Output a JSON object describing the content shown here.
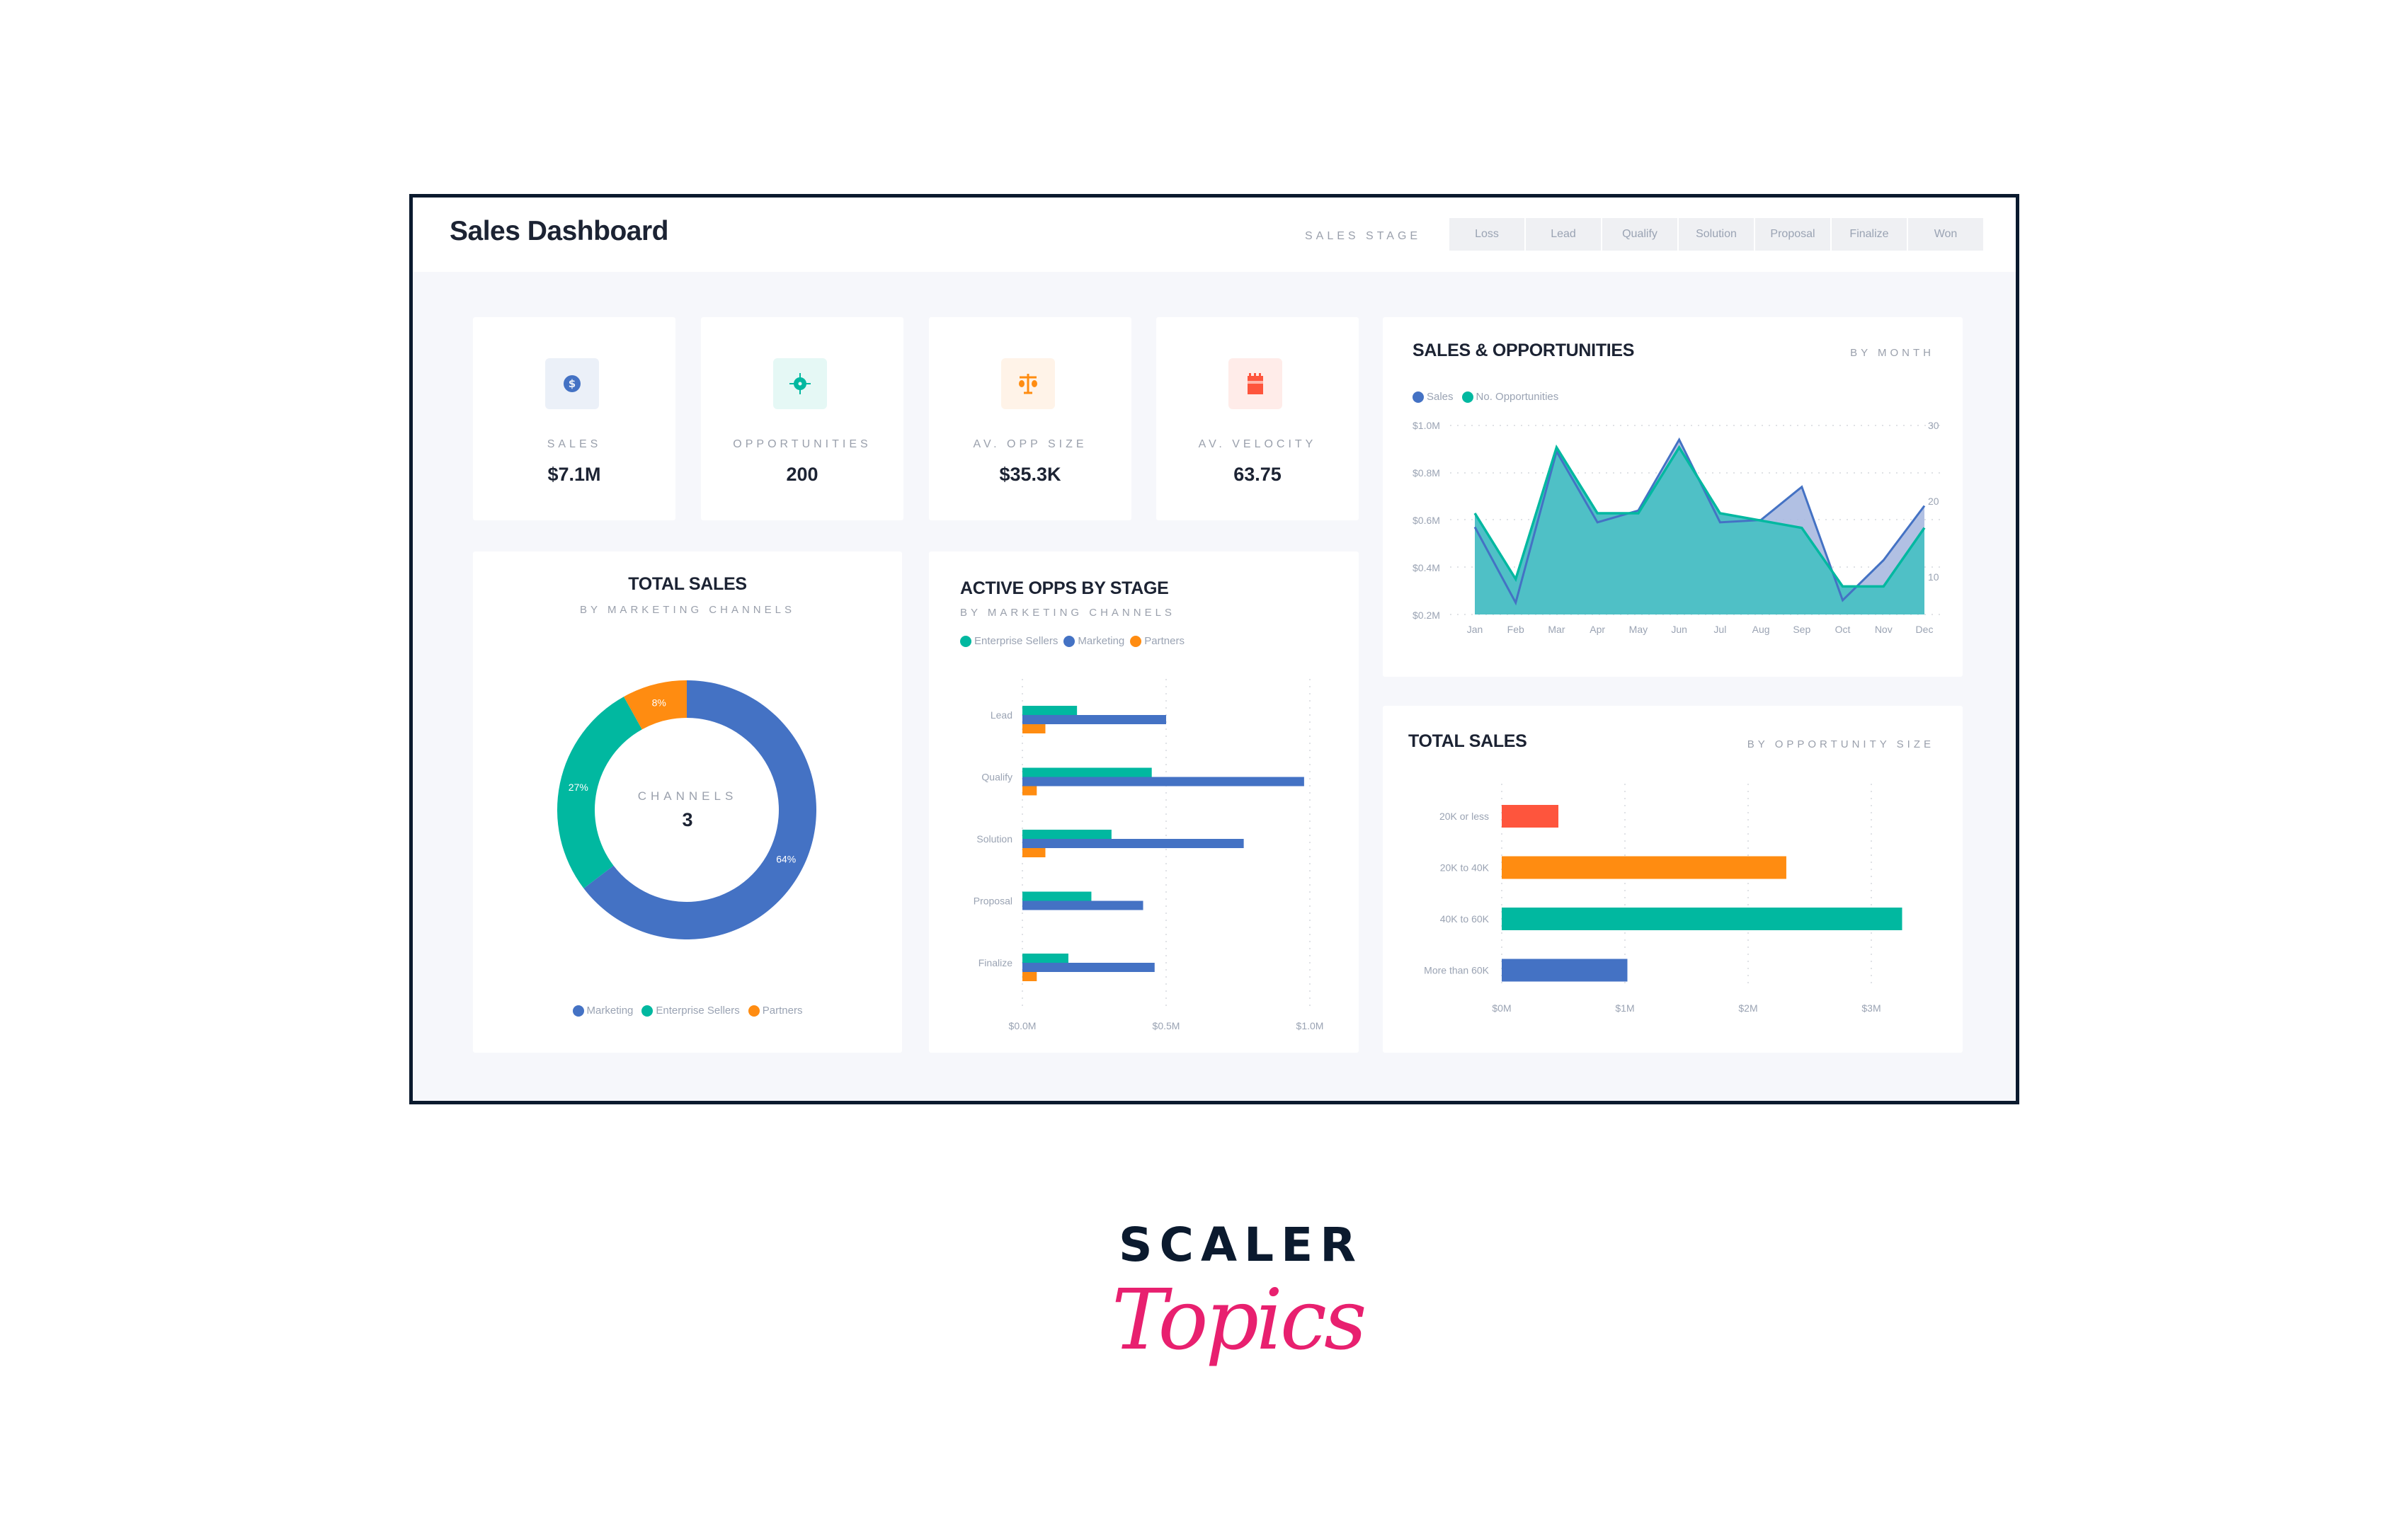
{
  "header": {
    "title": "Sales Dashboard",
    "stage_label": "SALES STAGE",
    "stages": [
      "Loss",
      "Lead",
      "Qualify",
      "Solution",
      "Proposal",
      "Finalize",
      "Won"
    ]
  },
  "kpis": [
    {
      "label": "SALES",
      "value": "$7.1M",
      "icon": "dollar-icon",
      "color": "#4472c4",
      "bg": "#ebf0f8"
    },
    {
      "label": "OPPORTUNITIES",
      "value": "200",
      "icon": "target-icon",
      "color": "#01b8a0",
      "bg": "#e5f8f5"
    },
    {
      "label": "AV. OPP SIZE",
      "value": "$35.3K",
      "icon": "scale-icon",
      "color": "#ff8c11",
      "bg": "#fff3e8"
    },
    {
      "label": "AV. VELOCITY",
      "value": "63.75",
      "icon": "calendar-icon",
      "color": "#fe553d",
      "bg": "#ffece9"
    }
  ],
  "sales_opps": {
    "title": "SALES & OPPORTUNITIES",
    "subtitle": "BY MONTH",
    "legend": [
      "Sales",
      "No. Opportunities"
    ],
    "y_left": [
      "$1.0M",
      "$0.8M",
      "$0.6M",
      "$0.4M",
      "$0.2M"
    ],
    "y_right": [
      "30",
      "20",
      "10"
    ],
    "months": [
      "Jan",
      "Feb",
      "Mar",
      "Apr",
      "May",
      "Jun",
      "Jul",
      "Aug",
      "Sep",
      "Oct",
      "Nov",
      "Dec"
    ]
  },
  "total_sales_channels": {
    "title": "TOTAL SALES",
    "subtitle": "BY MARKETING CHANNELS",
    "center_label": "CHANNELS",
    "center_value": "3",
    "slices": [
      {
        "name": "Marketing",
        "pct": "64%",
        "color": "#4472c4"
      },
      {
        "name": "Enterprise Sellers",
        "pct": "27%",
        "color": "#01b8a0"
      },
      {
        "name": "Partners",
        "pct": "8%",
        "color": "#ff8c11"
      }
    ]
  },
  "active_opps": {
    "title": "ACTIVE OPPS BY STAGE",
    "subtitle": "BY MARKETING CHANNELS",
    "legend": [
      "Enterprise Sellers",
      "Marketing",
      "Partners"
    ],
    "stages": [
      "Lead",
      "Qualify",
      "Solution",
      "Proposal",
      "Finalize"
    ],
    "x_ticks": [
      "$0.0M",
      "$0.5M",
      "$1.0M"
    ]
  },
  "total_sales_size": {
    "title": "TOTAL SALES",
    "subtitle": "BY OPPORTUNITY SIZE",
    "categories": [
      "20K or less",
      "20K to 40K",
      "40K to 60K",
      "More than 60K"
    ],
    "x_ticks": [
      "$0M",
      "$1M",
      "$2M",
      "$3M"
    ]
  },
  "logo": {
    "line1": "SCALER",
    "line2": "Topics"
  },
  "chart_data": [
    {
      "type": "area",
      "title": "SALES & OPPORTUNITIES",
      "subtitle": "BY MONTH",
      "x": [
        "Jan",
        "Feb",
        "Mar",
        "Apr",
        "May",
        "Jun",
        "Jul",
        "Aug",
        "Sep",
        "Oct",
        "Nov",
        "Dec"
      ],
      "series": [
        {
          "name": "Sales",
          "axis": "left",
          "unit": "$M",
          "color": "#4472c4",
          "values": [
            0.57,
            0.25,
            0.89,
            0.59,
            0.64,
            0.94,
            0.59,
            0.6,
            0.74,
            0.26,
            0.43,
            0.66
          ]
        },
        {
          "name": "No. Opportunities",
          "axis": "right",
          "color": "#01b8a0",
          "values": [
            18,
            9,
            27,
            18,
            18,
            27,
            18,
            17,
            16,
            8,
            8,
            16
          ]
        }
      ],
      "ylim_left": [
        0.2,
        1.0
      ],
      "ylim_right": [
        0,
        30
      ],
      "legend_position": "top-left",
      "grid": true
    },
    {
      "type": "pie",
      "title": "TOTAL SALES",
      "subtitle": "BY MARKETING CHANNELS",
      "categories": [
        "Marketing",
        "Enterprise Sellers",
        "Partners"
      ],
      "values": [
        64,
        27,
        8
      ],
      "donut": true,
      "center_text": "CHANNELS 3",
      "legend_position": "bottom"
    },
    {
      "type": "bar",
      "orientation": "horizontal",
      "title": "ACTIVE OPPS BY STAGE",
      "subtitle": "BY MARKETING CHANNELS",
      "categories": [
        "Lead",
        "Qualify",
        "Solution",
        "Proposal",
        "Finalize"
      ],
      "series": [
        {
          "name": "Enterprise Sellers",
          "color": "#01b8a0",
          "values": [
            0.19,
            0.45,
            0.31,
            0.24,
            0.16
          ]
        },
        {
          "name": "Marketing",
          "color": "#4472c4",
          "values": [
            0.5,
            0.98,
            0.77,
            0.42,
            0.46
          ]
        },
        {
          "name": "Partners",
          "color": "#ff8c11",
          "values": [
            0.08,
            0.05,
            0.08,
            0.0,
            0.05
          ]
        }
      ],
      "xlabel": "",
      "unit": "$M",
      "xlim": [
        0,
        1.0
      ],
      "x_ticks": [
        "$0.0M",
        "$0.5M",
        "$1.0M"
      ],
      "legend_position": "top-left",
      "grid": true
    },
    {
      "type": "bar",
      "orientation": "horizontal",
      "title": "TOTAL SALES",
      "subtitle": "BY OPPORTUNITY SIZE",
      "categories": [
        "20K or less",
        "20K to 40K",
        "40K to 60K",
        "More than 60K"
      ],
      "values": [
        0.46,
        2.31,
        3.25,
        1.02
      ],
      "colors": [
        "#fe553d",
        "#ff8c11",
        "#01b8a0",
        "#4472c4"
      ],
      "unit": "$M",
      "xlim": [
        0,
        3.5
      ],
      "x_ticks": [
        "$0M",
        "$1M",
        "$2M",
        "$3M"
      ],
      "grid": true
    }
  ]
}
